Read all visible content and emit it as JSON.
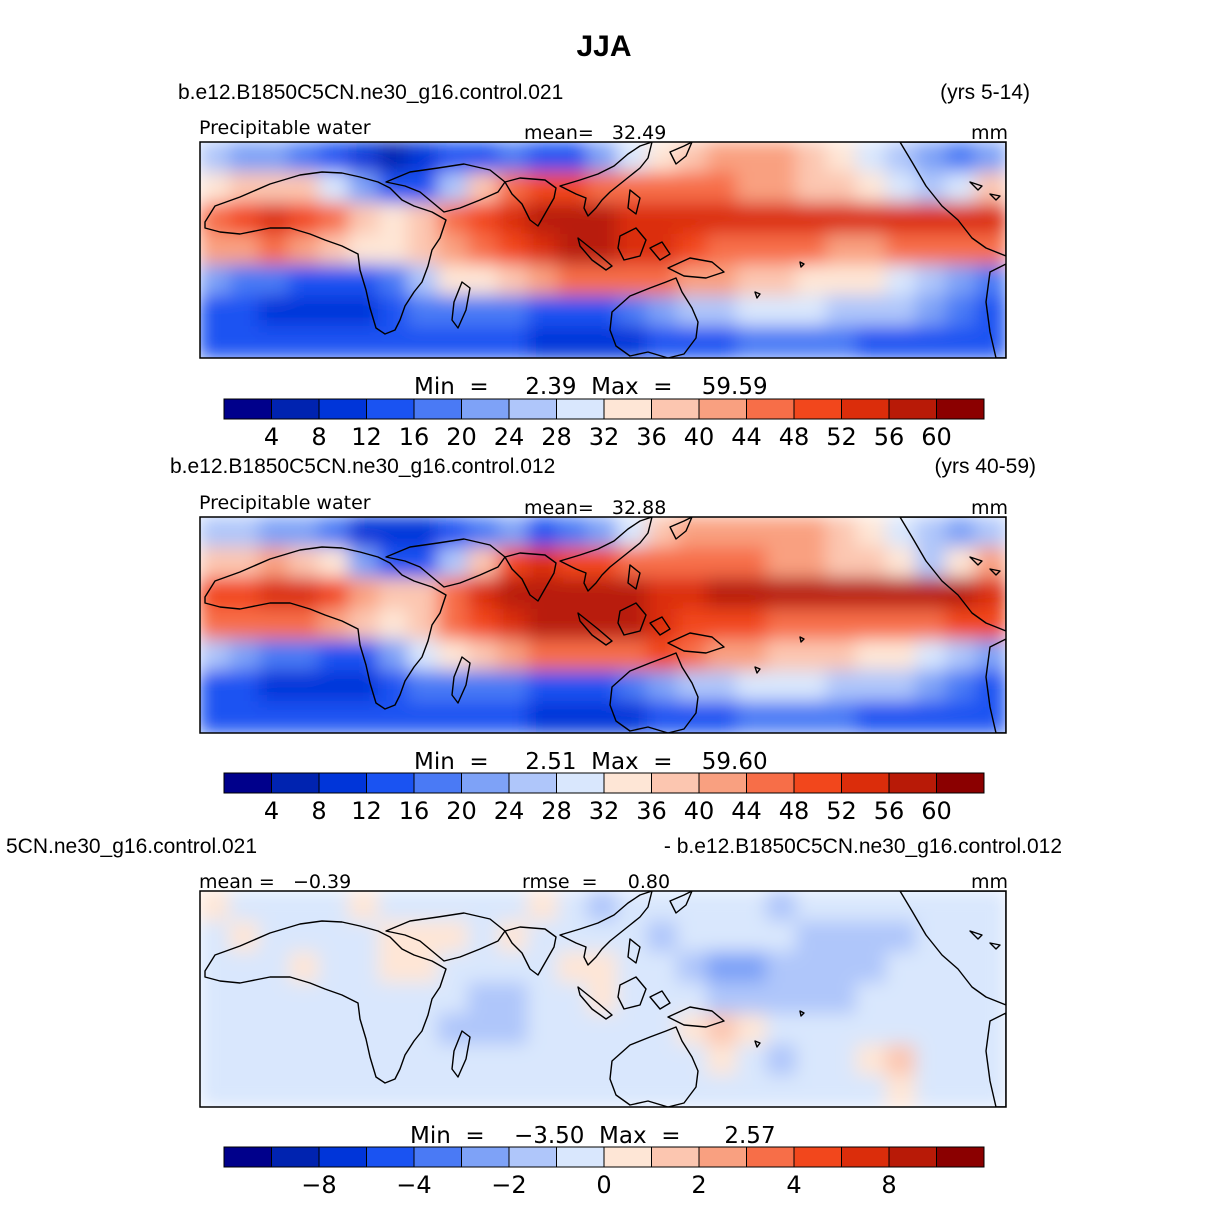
{
  "title": "JJA",
  "colors": {
    "palette": [
      "#00008b",
      "#0023b0",
      "#0035d9",
      "#1a53f2",
      "#4a7af5",
      "#7ea2f7",
      "#afc6fa",
      "#d9e7fd",
      "#fee6d6",
      "#fcc6b0",
      "#f9a080",
      "#f76e48",
      "#f2471c",
      "#db2d0b",
      "#b81a07",
      "#8b0000"
    ],
    "coastline": "#000000"
  },
  "panels": [
    {
      "case": "b.e12.B1850C5CN.ne30_g16.control.021",
      "years": "(yrs 5-14)",
      "label_left": "Precipitable water",
      "label_center": "mean=   32.49",
      "units": "mm",
      "minmax": "Min  =     2.39  Max  =    59.59",
      "ticks": [
        "4",
        "8",
        "12",
        "16",
        "20",
        "24",
        "28",
        "32",
        "36",
        "40",
        "44",
        "48",
        "52",
        "56",
        "60"
      ]
    },
    {
      "case": "b.e12.B1850C5CN.ne30_g16.control.012",
      "years": "(yrs 40-59)",
      "label_left": "Precipitable water",
      "label_center": "mean=   32.88",
      "units": "mm",
      "minmax": "Min  =     2.51  Max  =    59.60",
      "ticks": [
        "4",
        "8",
        "12",
        "16",
        "20",
        "24",
        "28",
        "32",
        "36",
        "40",
        "44",
        "48",
        "52",
        "56",
        "60"
      ]
    },
    {
      "case": "5CN.ne30_g16.control.021",
      "years": "- b.e12.B1850C5CN.ne30_g16.control.012",
      "label_left": "mean =   −0.39",
      "label_center": "rmse  =     0.80",
      "units": "mm",
      "minmax": "Min  =    −3.50  Max  =      2.57",
      "ticks": [
        "−8",
        "−4",
        "−2",
        "0",
        "2",
        "4",
        "8"
      ]
    }
  ],
  "chart_data": [
    {
      "type": "heatmap",
      "title": "JJA",
      "subtitle": "b.e12.B1850C5CN.ne30_g16.control.021",
      "variable": "Precipitable water",
      "units": "mm",
      "period": "(yrs 5-14)",
      "mean": 32.49,
      "min": 2.39,
      "max": 59.59,
      "contour_levels": [
        4,
        8,
        12,
        16,
        20,
        24,
        28,
        32,
        36,
        40,
        44,
        48,
        52,
        56,
        60
      ],
      "lon_range": [
        -30,
        280
      ],
      "lat_range": [
        -45,
        45
      ],
      "field": [
        [
          24,
          22,
          20,
          18,
          15,
          9,
          7,
          8,
          12,
          15,
          18,
          12,
          14,
          20,
          28,
          34,
          38,
          40,
          40,
          40,
          38,
          34,
          30,
          26,
          22,
          18,
          22
        ],
        [
          34,
          36,
          38,
          36,
          30,
          20,
          12,
          14,
          24,
          36,
          46,
          50,
          48,
          46,
          44,
          44,
          44,
          44,
          42,
          40,
          38,
          36,
          34,
          30,
          24,
          30,
          38
        ],
        [
          46,
          48,
          52,
          50,
          46,
          38,
          34,
          36,
          44,
          50,
          54,
          56,
          56,
          56,
          54,
          52,
          52,
          54,
          54,
          54,
          54,
          54,
          54,
          54,
          54,
          54,
          52
        ],
        [
          42,
          42,
          44,
          42,
          38,
          34,
          32,
          36,
          42,
          46,
          50,
          54,
          56,
          56,
          54,
          52,
          48,
          46,
          46,
          44,
          44,
          42,
          42,
          44,
          44,
          46,
          46
        ],
        [
          22,
          18,
          16,
          14,
          12,
          12,
          18,
          26,
          32,
          34,
          38,
          42,
          44,
          44,
          44,
          46,
          42,
          40,
          38,
          36,
          34,
          34,
          32,
          30,
          26,
          22,
          18
        ],
        [
          14,
          12,
          10,
          10,
          10,
          10,
          12,
          16,
          18,
          18,
          18,
          14,
          12,
          14,
          18,
          22,
          24,
          26,
          28,
          28,
          28,
          26,
          24,
          24,
          22,
          18,
          14
        ],
        [
          12,
          12,
          12,
          12,
          12,
          12,
          12,
          14,
          14,
          14,
          12,
          10,
          8,
          8,
          10,
          12,
          14,
          14,
          16,
          16,
          16,
          16,
          14,
          14,
          12,
          12,
          12
        ]
      ]
    },
    {
      "type": "heatmap",
      "subtitle": "b.e12.B1850C5CN.ne30_g16.control.012",
      "variable": "Precipitable water",
      "units": "mm",
      "period": "(yrs 40-59)",
      "mean": 32.88,
      "min": 2.51,
      "max": 59.6,
      "contour_levels": [
        4,
        8,
        12,
        16,
        20,
        24,
        28,
        32,
        36,
        40,
        44,
        48,
        52,
        56,
        60
      ],
      "lon_range": [
        -30,
        280
      ],
      "lat_range": [
        -45,
        45
      ],
      "field": [
        [
          26,
          24,
          22,
          20,
          17,
          10,
          8,
          9,
          14,
          17,
          20,
          14,
          16,
          22,
          30,
          36,
          40,
          42,
          42,
          42,
          40,
          36,
          32,
          28,
          24,
          20,
          24
        ],
        [
          36,
          38,
          40,
          38,
          32,
          22,
          13,
          15,
          26,
          38,
          48,
          52,
          50,
          48,
          46,
          46,
          46,
          46,
          44,
          42,
          40,
          38,
          36,
          32,
          26,
          32,
          40
        ],
        [
          48,
          50,
          54,
          52,
          48,
          40,
          36,
          38,
          46,
          52,
          56,
          58,
          58,
          58,
          56,
          54,
          54,
          56,
          56,
          56,
          56,
          56,
          56,
          56,
          56,
          56,
          54
        ],
        [
          44,
          44,
          46,
          44,
          40,
          36,
          34,
          38,
          44,
          48,
          52,
          56,
          58,
          58,
          56,
          54,
          50,
          48,
          48,
          46,
          46,
          44,
          44,
          46,
          46,
          48,
          48
        ],
        [
          24,
          20,
          18,
          16,
          13,
          13,
          20,
          28,
          34,
          36,
          40,
          44,
          46,
          46,
          46,
          48,
          44,
          42,
          40,
          38,
          36,
          36,
          34,
          32,
          28,
          24,
          20
        ],
        [
          15,
          13,
          11,
          11,
          11,
          11,
          13,
          17,
          19,
          19,
          19,
          15,
          13,
          15,
          19,
          23,
          25,
          27,
          29,
          29,
          29,
          27,
          25,
          25,
          23,
          19,
          15
        ],
        [
          13,
          13,
          13,
          13,
          13,
          13,
          13,
          15,
          15,
          15,
          13,
          11,
          9,
          9,
          11,
          13,
          15,
          15,
          17,
          17,
          17,
          17,
          15,
          15,
          13,
          13,
          13
        ]
      ]
    },
    {
      "type": "heatmap",
      "subtitle": "5CN.ne30_g16.control.021 - b.e12.B1850C5CN.ne30_g16.control.012",
      "units": "mm",
      "mean": -0.39,
      "rmse": 0.8,
      "min": -3.5,
      "max": 2.57,
      "contour_levels": [
        -8,
        -6,
        -4,
        -3,
        -2,
        -1,
        0,
        1,
        2,
        3,
        4,
        6,
        8
      ],
      "lon_range": [
        -30,
        280
      ],
      "lat_range": [
        -45,
        45
      ],
      "field": [
        [
          0.5,
          -0.5,
          -0.5,
          -0.5,
          -0.5,
          0.5,
          -0.5,
          -0.5,
          -0.5,
          -0.5,
          -0.5,
          0.5,
          -0.5,
          -1.5,
          -0.5,
          -0.5,
          -0.5,
          -0.5,
          -0.5,
          -1.5,
          -0.5,
          -0.5,
          -0.5,
          -0.5,
          -0.5,
          -0.5,
          -0.5
        ],
        [
          -0.5,
          0.5,
          -0.5,
          -0.5,
          -0.5,
          -0.5,
          0.5,
          0.5,
          0.5,
          -0.5,
          0.5,
          -0.5,
          -0.5,
          -0.5,
          -0.5,
          -1.5,
          -0.5,
          -0.5,
          -0.5,
          -0.5,
          -1.5,
          -1.5,
          -1.5,
          -1.5,
          -0.5,
          -0.5,
          -0.5
        ],
        [
          -0.5,
          -0.5,
          -0.5,
          0.5,
          -0.5,
          -0.5,
          0.5,
          0.5,
          -0.5,
          -0.5,
          -0.5,
          -0.5,
          0.5,
          0.5,
          -0.5,
          -0.5,
          -1.5,
          -2.5,
          -2.5,
          -1.5,
          -1.5,
          -1.5,
          -1.5,
          -0.5,
          -0.5,
          -0.5,
          -0.5
        ],
        [
          -0.5,
          -0.5,
          -0.5,
          -0.5,
          -0.5,
          -0.5,
          -0.5,
          -0.5,
          -0.5,
          -1.5,
          -1.5,
          -0.5,
          -0.5,
          0.5,
          -0.5,
          -0.5,
          -0.5,
          -1.5,
          -1.5,
          -1.5,
          -1.5,
          -1.5,
          -0.5,
          -0.5,
          -0.5,
          -0.5,
          -0.5
        ],
        [
          -0.5,
          -0.5,
          -0.5,
          -0.5,
          -0.5,
          -0.5,
          -0.5,
          -0.5,
          -1.5,
          -1.5,
          -1.5,
          -0.5,
          -0.5,
          -0.5,
          -0.5,
          -0.5,
          0.5,
          1.5,
          0.5,
          -0.5,
          -0.5,
          -0.5,
          -0.5,
          -0.5,
          -0.5,
          -0.5,
          -0.5
        ],
        [
          -0.5,
          -0.5,
          -0.5,
          -0.5,
          -0.5,
          -0.5,
          -0.5,
          -0.5,
          -0.5,
          -0.5,
          -0.5,
          -0.5,
          -0.5,
          -0.5,
          -0.5,
          -0.5,
          -0.5,
          0.5,
          -0.5,
          -1.5,
          -0.5,
          -0.5,
          0.5,
          1.5,
          -0.5,
          -0.5,
          -0.5
        ],
        [
          -0.5,
          -0.5,
          -0.5,
          -0.5,
          -0.5,
          -0.5,
          -0.5,
          -0.5,
          -0.5,
          -0.5,
          -0.5,
          -0.5,
          -0.5,
          -0.5,
          -0.5,
          -0.5,
          -0.5,
          -0.5,
          -0.5,
          -0.5,
          -0.5,
          -0.5,
          -0.5,
          0.5,
          -0.5,
          -0.5,
          -0.5
        ]
      ]
    }
  ]
}
